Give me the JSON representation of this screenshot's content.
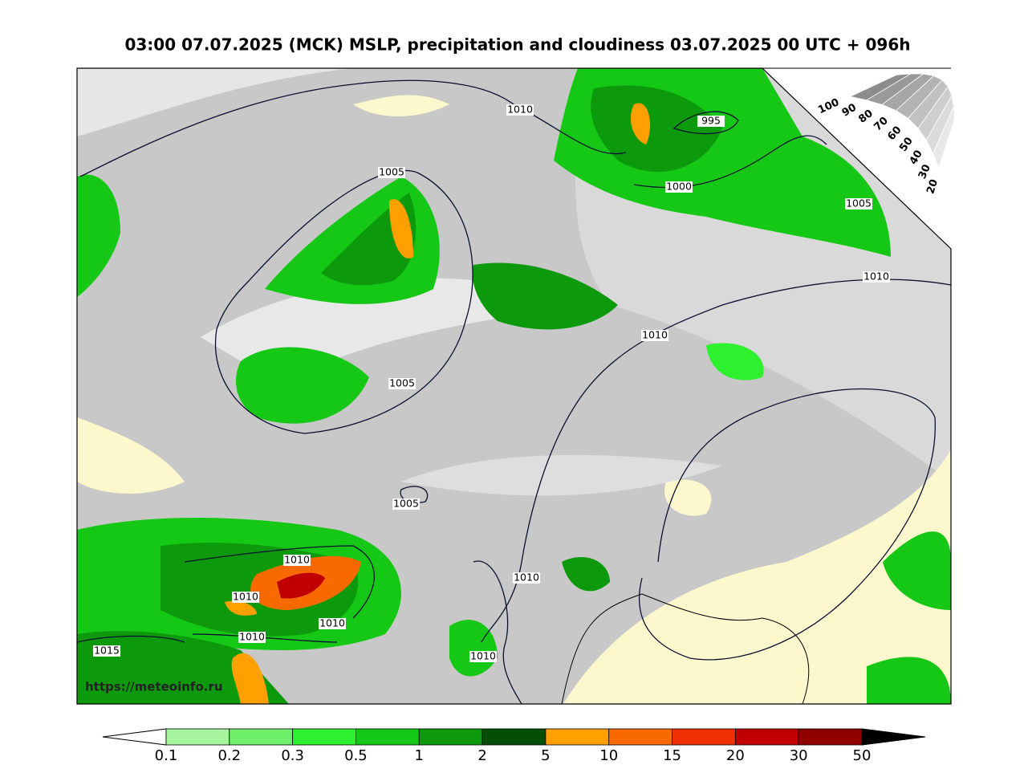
{
  "title": "03:00 07.07.2025 (MCK) MSLP, precipitation and cloudiness 03.07.2025 00 UTC + 096h",
  "source": "https://meteoinfo.ru",
  "isobar_labels": [
    "1010",
    "995",
    "1005",
    "1000",
    "1005",
    "1010",
    "1010",
    "1005",
    "1005",
    "1010",
    "1010",
    "1010",
    "1010",
    "1015",
    "1010",
    "1010"
  ],
  "cloudiness_scale": {
    "labels": [
      100,
      90,
      80,
      70,
      60,
      50,
      40,
      30,
      20
    ]
  },
  "precipitation_scale": {
    "labels": [
      0.1,
      0.2,
      0.3,
      0.5,
      1,
      2,
      5,
      10,
      15,
      20,
      30,
      50
    ],
    "colors": [
      "#a8f5a0",
      "#6ef06a",
      "#2ef02e",
      "#16c816",
      "#0c9a0c",
      "#054e05",
      "#ff9f00",
      "#f86a00",
      "#f03000",
      "#c00000",
      "#900000"
    ]
  }
}
